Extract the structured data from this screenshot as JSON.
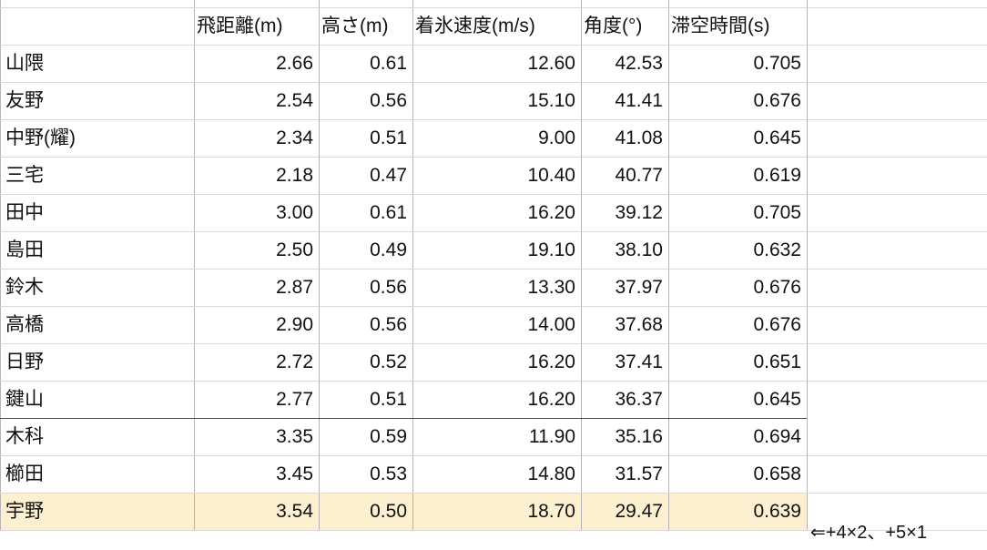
{
  "table": {
    "columns": [
      "",
      "飛距離(m)",
      "高さ(m)",
      "着氷速度(m/s)",
      "角度(°)",
      "滞空時間(s)"
    ],
    "rows": [
      {
        "name": "山隈",
        "values": [
          "2.66",
          "0.61",
          "12.60",
          "42.53",
          "0.705"
        ]
      },
      {
        "name": "友野",
        "values": [
          "2.54",
          "0.56",
          "15.10",
          "41.41",
          "0.676"
        ]
      },
      {
        "name": "中野(耀)",
        "values": [
          "2.34",
          "0.51",
          "9.00",
          "41.08",
          "0.645"
        ]
      },
      {
        "name": "三宅",
        "values": [
          "2.18",
          "0.47",
          "10.40",
          "40.77",
          "0.619"
        ]
      },
      {
        "name": "田中",
        "values": [
          "3.00",
          "0.61",
          "16.20",
          "39.12",
          "0.705"
        ]
      },
      {
        "name": "島田",
        "values": [
          "2.50",
          "0.49",
          "19.10",
          "38.10",
          "0.632"
        ]
      },
      {
        "name": "鈴木",
        "values": [
          "2.87",
          "0.56",
          "13.30",
          "37.97",
          "0.676"
        ]
      },
      {
        "name": "高橋",
        "values": [
          "2.90",
          "0.56",
          "14.00",
          "37.68",
          "0.676"
        ]
      },
      {
        "name": "日野",
        "values": [
          "2.72",
          "0.52",
          "16.20",
          "37.41",
          "0.651"
        ]
      },
      {
        "name": "鍵山",
        "values": [
          "2.77",
          "0.51",
          "16.20",
          "36.37",
          "0.645"
        ]
      },
      {
        "name": "木科",
        "values": [
          "3.35",
          "0.59",
          "11.90",
          "35.16",
          "0.694"
        ]
      },
      {
        "name": "櫛田",
        "values": [
          "3.45",
          "0.53",
          "14.80",
          "31.57",
          "0.658"
        ]
      },
      {
        "name": "宇野",
        "values": [
          "3.54",
          "0.50",
          "18.70",
          "29.47",
          "0.639"
        ]
      }
    ],
    "highlight_row_index": 12,
    "highlight_color": "#fdf0d0"
  },
  "annotation": "⇐+4×2、+5×1"
}
